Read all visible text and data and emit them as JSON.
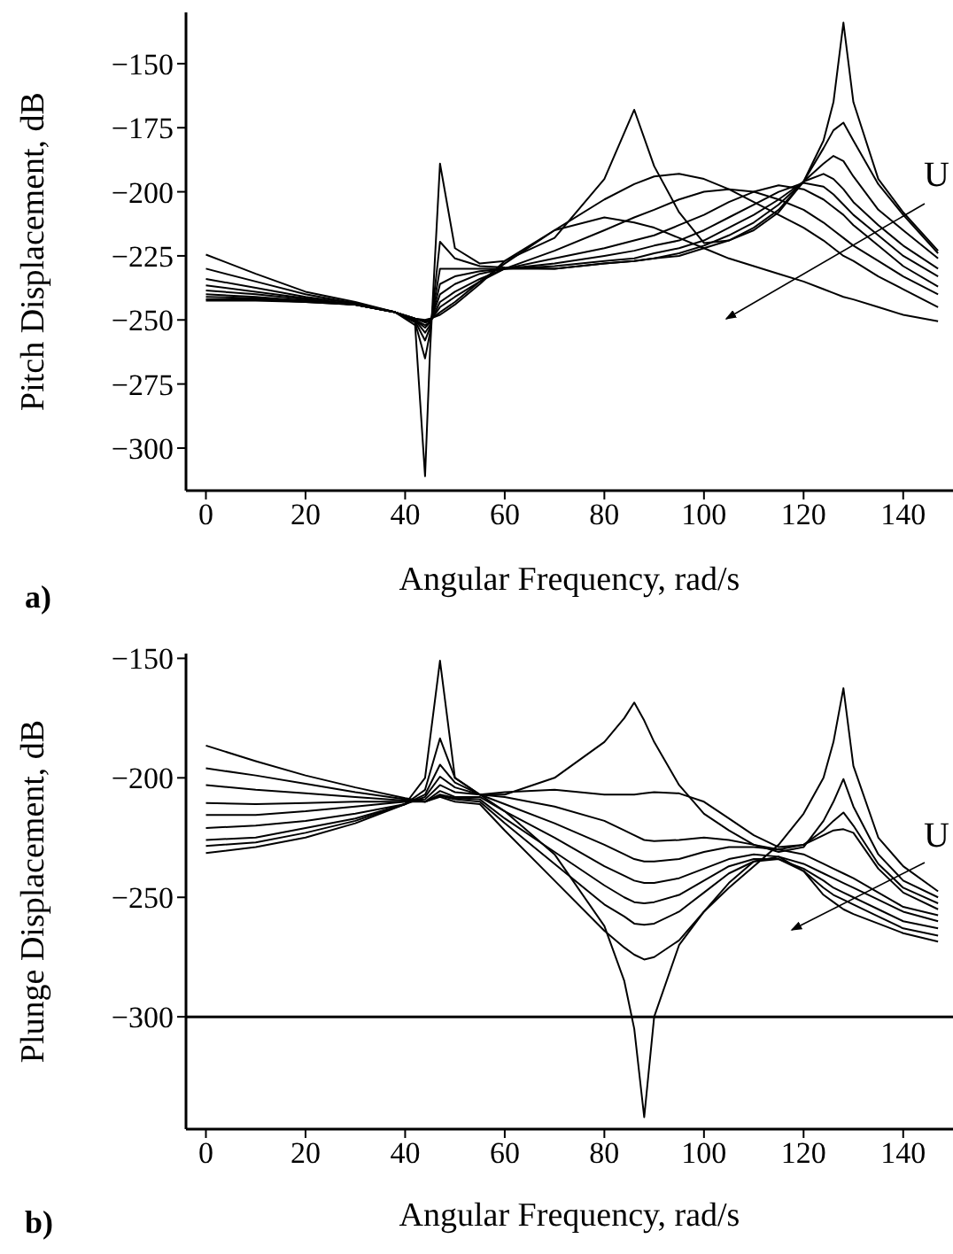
{
  "chart_data": [
    {
      "type": "line",
      "xlabel": "Angular Frequency, rad/s",
      "ylabel": "Pitch Displacement, dB",
      "xlim": [
        -4,
        150
      ],
      "ylim": [
        -316.6,
        -130
      ],
      "xticks": [
        0,
        20,
        40,
        60,
        80,
        100,
        120,
        140
      ],
      "yticks": [
        -300,
        -275,
        -250,
        -225,
        -200,
        -175,
        -150
      ],
      "annotations": [
        "U",
        "a)"
      ],
      "x": [
        0,
        10,
        20,
        30,
        38,
        42,
        44,
        45,
        47,
        50,
        55,
        60,
        70,
        80,
        86,
        90,
        95,
        100,
        105,
        110,
        115,
        120,
        124,
        126,
        128,
        130,
        135,
        140,
        147
      ],
      "series": [
        {
          "color": "#000000",
          "values": [
            -242.5,
            -242.5,
            -243,
            -244,
            -247,
            -252,
            -311,
            -262,
            -189,
            -222,
            -228,
            -227,
            -218,
            -195,
            -168,
            -190,
            -208,
            -220,
            -219,
            -215,
            -208,
            -196,
            -180,
            -165,
            -134,
            -165,
            -195,
            -208,
            -223
          ]
        },
        {
          "color": "#000000",
          "values": [
            -242,
            -242,
            -243,
            -244,
            -247,
            -251,
            -265,
            -255,
            -219.5,
            -226,
            -229,
            -229.5,
            -230,
            -228,
            -227,
            -226,
            -225,
            -222,
            -219,
            -214,
            -207,
            -196,
            -183,
            -176,
            -173,
            -180,
            -197,
            -209,
            -224
          ]
        },
        {
          "color": "#000000",
          "values": [
            -241,
            -241.5,
            -242.5,
            -244,
            -247,
            -250.5,
            -258,
            -253,
            -230,
            -230,
            -230,
            -230,
            -230,
            -228,
            -227,
            -226,
            -224,
            -221,
            -217,
            -212,
            -205,
            -196,
            -189,
            -186,
            -188,
            -194,
            -207,
            -215,
            -226
          ]
        },
        {
          "color": "#000000",
          "values": [
            -240,
            -241,
            -242.5,
            -244,
            -247,
            -250,
            -255,
            -252,
            -236,
            -233,
            -231,
            -230,
            -229,
            -227,
            -226,
            -224,
            -222,
            -219,
            -214,
            -209,
            -203,
            -196,
            -193,
            -195,
            -199,
            -204,
            -213,
            -221,
            -230
          ]
        },
        {
          "color": "#000000",
          "values": [
            -238.5,
            -240,
            -242,
            -244,
            -247,
            -250,
            -253,
            -251,
            -240,
            -236,
            -232,
            -230,
            -228,
            -225,
            -223,
            -221,
            -219,
            -215,
            -210,
            -205,
            -200,
            -196.5,
            -198,
            -201,
            -205,
            -209,
            -217,
            -225,
            -233
          ]
        },
        {
          "color": "#000000",
          "values": [
            -236.5,
            -239,
            -241.5,
            -244,
            -247,
            -250,
            -252,
            -251,
            -243,
            -239,
            -234,
            -230,
            -226,
            -222,
            -219,
            -217,
            -213,
            -209,
            -204,
            -200,
            -197.5,
            -199,
            -203,
            -206,
            -209,
            -213,
            -221,
            -229,
            -237
          ]
        },
        {
          "color": "#000000",
          "values": [
            -234,
            -237.5,
            -241,
            -243.5,
            -247,
            -249.5,
            -251,
            -250.5,
            -245,
            -241,
            -235,
            -230,
            -223,
            -215,
            -210,
            -207,
            -203,
            -200,
            -199,
            -200,
            -203,
            -207,
            -212,
            -215,
            -218,
            -221,
            -227,
            -233,
            -240
          ]
        },
        {
          "color": "#000000",
          "values": [
            -230,
            -235,
            -240,
            -243.5,
            -247,
            -249.5,
            -250.5,
            -250,
            -247,
            -243,
            -235,
            -228,
            -215,
            -203,
            -197,
            -194,
            -193,
            -195,
            -199,
            -204,
            -209,
            -214,
            -219,
            -222,
            -225,
            -227,
            -233,
            -238,
            -245
          ]
        },
        {
          "color": "#000000",
          "values": [
            -224.5,
            -232,
            -239,
            -243,
            -247,
            -249.5,
            -250,
            -249.5,
            -248,
            -244,
            -236,
            -227,
            -215,
            -210,
            -212,
            -214,
            -218,
            -222,
            -226,
            -229,
            -232,
            -235,
            -238,
            -239.5,
            -241,
            -242,
            -245,
            -248,
            -250.5
          ]
        }
      ]
    },
    {
      "type": "line",
      "xlabel": "Angular Frequency, rad/s",
      "ylabel": "Plunge Displacement, dB",
      "xlim": [
        -4,
        150
      ],
      "ylim": [
        -347,
        -148
      ],
      "xticks": [
        0,
        20,
        40,
        60,
        80,
        100,
        120,
        140
      ],
      "yticks": [
        -300,
        -250,
        -200,
        -150
      ],
      "annotations": [
        "U",
        "b)"
      ],
      "ref_lines": [
        {
          "axis": "y",
          "value": -300,
          "color": "#000000"
        }
      ],
      "x": [
        0,
        10,
        20,
        30,
        40,
        44,
        47,
        50,
        55,
        60,
        70,
        80,
        84,
        86,
        88,
        90,
        95,
        100,
        105,
        110,
        115,
        120,
        124,
        126,
        128,
        130,
        135,
        140,
        147
      ],
      "series": [
        {
          "color": "#000000",
          "values": [
            -231.5,
            -229,
            -225,
            -219,
            -211,
            -200,
            -151,
            -200,
            -207,
            -214,
            -232,
            -262,
            -285,
            -305,
            -342,
            -300,
            -270,
            -256,
            -246,
            -237,
            -228,
            -215,
            -200,
            -185,
            -162.5,
            -195,
            -225,
            -237,
            -247.5
          ]
        },
        {
          "color": "#000000",
          "values": [
            -228.5,
            -227,
            -223,
            -218,
            -211,
            -205,
            -183.5,
            -200,
            -207,
            -207,
            -200,
            -185,
            -175,
            -168.5,
            -176,
            -185,
            -203,
            -215,
            -222,
            -228,
            -231,
            -229,
            -218,
            -210,
            -200.5,
            -212,
            -232,
            -243,
            -250
          ]
        },
        {
          "color": "#000000",
          "values": [
            -226,
            -225,
            -221,
            -217,
            -211,
            -207,
            -194.5,
            -202,
            -207,
            -206,
            -205,
            -207,
            -207,
            -207,
            -206.5,
            -206,
            -206.5,
            -210,
            -217,
            -224,
            -229,
            -228,
            -222,
            -218,
            -214.5,
            -220,
            -236,
            -246,
            -252.5
          ]
        },
        {
          "color": "#000000",
          "values": [
            -221,
            -220,
            -218,
            -215,
            -211,
            -208,
            -199.5,
            -204,
            -207,
            -208,
            -212,
            -218,
            -222,
            -224,
            -226,
            -226.5,
            -226,
            -225,
            -226,
            -228,
            -230,
            -228,
            -224,
            -222,
            -221.5,
            -223,
            -238,
            -248,
            -255
          ]
        },
        {
          "color": "#000000",
          "values": [
            -215.5,
            -215.5,
            -214,
            -212,
            -210,
            -209,
            -203,
            -206,
            -207,
            -211,
            -219,
            -228,
            -232,
            -234,
            -235,
            -235,
            -234,
            -231,
            -229,
            -229,
            -230,
            -232,
            -236,
            -238,
            -240,
            -242,
            -248,
            -254,
            -257.5
          ]
        },
        {
          "color": "#000000",
          "values": [
            -210.5,
            -211,
            -210.5,
            -210,
            -210,
            -210,
            -205.5,
            -208,
            -208,
            -214,
            -225,
            -237,
            -241,
            -243,
            -244,
            -244,
            -242,
            -238,
            -234,
            -232,
            -233,
            -236,
            -240,
            -242,
            -244,
            -246,
            -251,
            -256,
            -260
          ]
        },
        {
          "color": "#000000",
          "values": [
            -203,
            -205,
            -206.5,
            -208,
            -209.5,
            -210,
            -207,
            -208.5,
            -209,
            -217,
            -231,
            -245,
            -250,
            -252,
            -252.5,
            -252,
            -249,
            -243,
            -237,
            -234,
            -234,
            -238,
            -243,
            -246,
            -248,
            -250,
            -255,
            -260,
            -263
          ]
        },
        {
          "color": "#000000",
          "values": [
            -196,
            -199,
            -202.5,
            -206,
            -209,
            -210,
            -207.5,
            -209,
            -210,
            -219,
            -236,
            -253,
            -258,
            -261,
            -261.5,
            -261,
            -256,
            -248,
            -240,
            -235,
            -234,
            -239,
            -246,
            -249,
            -251,
            -253,
            -258,
            -263,
            -266
          ]
        },
        {
          "color": "#000000",
          "values": [
            -186.5,
            -193,
            -199,
            -204,
            -208.5,
            -210,
            -208,
            -210,
            -211,
            -222,
            -243,
            -264,
            -271,
            -274,
            -276,
            -275,
            -268,
            -256,
            -244,
            -235,
            -233,
            -239,
            -249,
            -252,
            -255,
            -257,
            -261,
            -265,
            -268.5
          ]
        }
      ]
    }
  ]
}
